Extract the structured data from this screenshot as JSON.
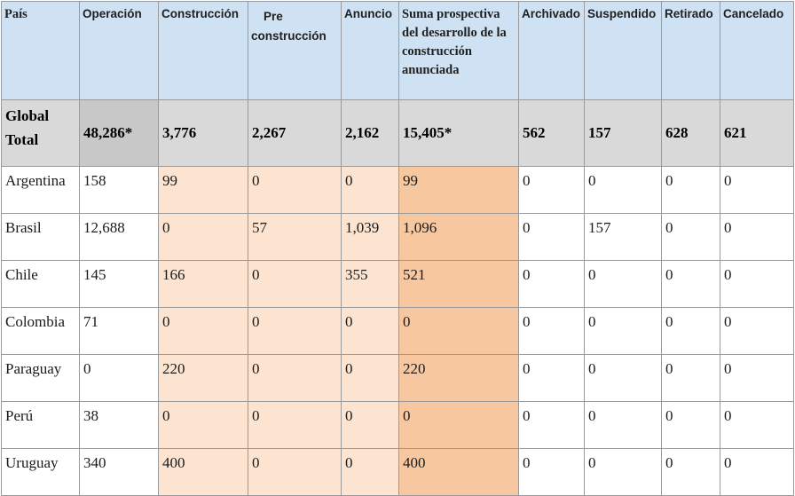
{
  "headers": {
    "pais": "País",
    "operacion": "Operación",
    "construccion": "Construcción",
    "pre": "Pre construcción",
    "anuncio": "Anuncio",
    "suma": "Suma prospectiva del desarrollo de la construcción anunciada",
    "archivado": "Archivado",
    "suspendido": "Suspendido",
    "retirado": "Retirado",
    "cancelado": "Cancelado"
  },
  "total": {
    "label": "Global Total",
    "operacion": "48,286*",
    "construccion": "3,776",
    "pre": "2,267",
    "anuncio": "2,162",
    "suma": "15,405*",
    "archivado": "562",
    "suspendido": "157",
    "retirado": "628",
    "cancelado": "621"
  },
  "rows": [
    {
      "pais": "Argentina",
      "operacion": "158",
      "construccion": "99",
      "pre": "0",
      "anuncio": "0",
      "suma": "99",
      "archivado": "0",
      "suspendido": "0",
      "retirado": "0",
      "cancelado": "0"
    },
    {
      "pais": "Brasil",
      "operacion": "12,688",
      "construccion": "0",
      "pre": "57",
      "anuncio": "1,039",
      "suma": "1,096",
      "archivado": "0",
      "suspendido": "157",
      "retirado": "0",
      "cancelado": "0"
    },
    {
      "pais": "Chile",
      "operacion": "145",
      "construccion": "166",
      "pre": "0",
      "anuncio": "355",
      "suma": "521",
      "archivado": "0",
      "suspendido": "0",
      "retirado": "0",
      "cancelado": "0"
    },
    {
      "pais": "Colombia",
      "operacion": "71",
      "construccion": "0",
      "pre": "0",
      "anuncio": "0",
      "suma": "0",
      "archivado": "0",
      "suspendido": "0",
      "retirado": "0",
      "cancelado": "0"
    },
    {
      "pais": "Paraguay",
      "operacion": "0",
      "construccion": "220",
      "pre": "0",
      "anuncio": "0",
      "suma": "220",
      "archivado": "0",
      "suspendido": "0",
      "retirado": "0",
      "cancelado": "0"
    },
    {
      "pais": "Perú",
      "operacion": "38",
      "construccion": "0",
      "pre": "0",
      "anuncio": "0",
      "suma": "0",
      "archivado": "0",
      "suspendido": "0",
      "retirado": "0",
      "cancelado": "0"
    },
    {
      "pais": "Uruguay",
      "operacion": "340",
      "construccion": "400",
      "pre": "0",
      "anuncio": "0",
      "suma": "400",
      "archivado": "0",
      "suspendido": "0",
      "retirado": "0",
      "cancelado": "0"
    }
  ],
  "colors": {
    "header_bg": "#cfe2f3",
    "total_bg": "#d9d9d9",
    "construction_bg": "#fce4d0",
    "suma_bg": "#f7c8a0"
  }
}
